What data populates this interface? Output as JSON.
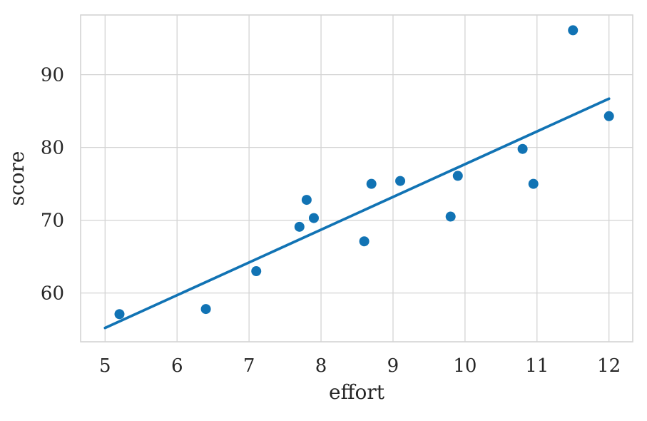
{
  "figure": {
    "background": "#ffffff"
  },
  "chart_data": {
    "type": "scatter",
    "xlabel": "effort",
    "ylabel": "score",
    "points": [
      [
        5.2,
        57.1
      ],
      [
        6.4,
        57.8
      ],
      [
        7.1,
        63.0
      ],
      [
        7.7,
        69.1
      ],
      [
        7.8,
        72.8
      ],
      [
        7.9,
        70.3
      ],
      [
        8.6,
        67.1
      ],
      [
        8.7,
        75.0
      ],
      [
        9.1,
        75.4
      ],
      [
        9.8,
        70.5
      ],
      [
        9.9,
        76.1
      ],
      [
        10.8,
        79.8
      ],
      [
        10.95,
        75.0
      ],
      [
        11.5,
        96.1
      ],
      [
        12.0,
        84.3
      ]
    ],
    "regression_line": {
      "x_start": 5.0,
      "y_start": 55.2,
      "x_end": 12.0,
      "y_end": 86.7
    },
    "x_ticks": [
      5,
      6,
      7,
      8,
      9,
      10,
      11,
      12
    ],
    "y_ticks": [
      60,
      70,
      80,
      90
    ],
    "xlim": [
      4.66,
      12.33
    ],
    "ylim": [
      53.3,
      98.2
    ],
    "grid": true,
    "legend": false,
    "colors": {
      "points": "#1173b4",
      "line": "#1173b4",
      "grid": "#d4d4d4",
      "border": "#d4d4d4",
      "text": "#262626",
      "background": "#ffffff"
    }
  }
}
